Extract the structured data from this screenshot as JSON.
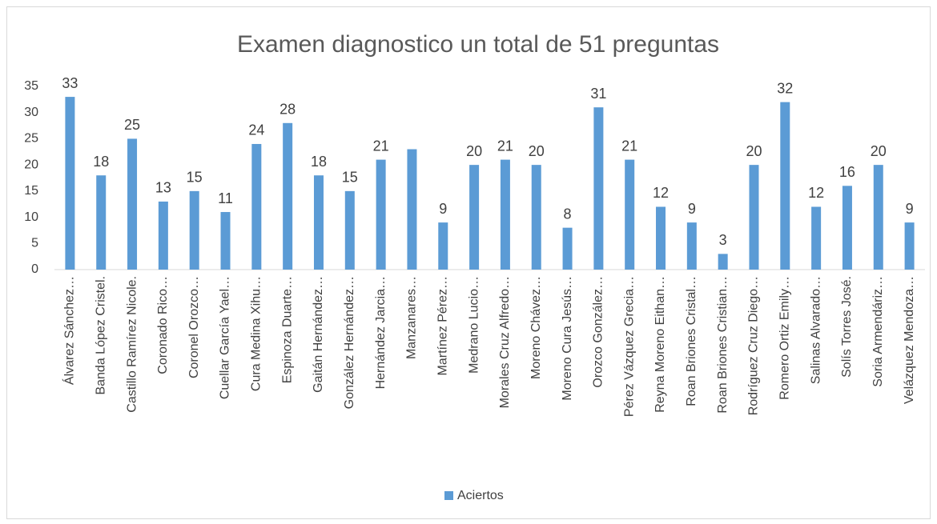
{
  "chart_data": {
    "type": "bar",
    "title": "Examen diagnostico un total de 51 preguntas",
    "categories": [
      "Álvarez Sánchez…",
      "Banda López Cristel.",
      "Castillo Ramírez Nicole.",
      "Coronado Rico…",
      "Coronel Orozco…",
      "Cuellar García Yael…",
      "Cura Medina Xihu…",
      "Espinoza Duarte…",
      "Gaitán Hernández…",
      "González Hernández…",
      "Hernández Jarcia…",
      "Manzanares…",
      "Martínez Pérez…",
      "Medrano Lucio…",
      "Morales Cruz Alfredo…",
      "Moreno Chávez…",
      "Moreno Cura Jesús…",
      "Orozco González…",
      "Pérez Vázquez Grecia…",
      "Reyna Moreno Eithan…",
      "Roan Briones Cristal…",
      "Roan Briones Cristian…",
      "Rodríguez Cruz Diego…",
      "Romero Ortiz Emily…",
      "Salinas Alvarado…",
      "Solís Torres José.",
      "Soria Armendáriz…",
      "Velázquez Mendoza…"
    ],
    "series": [
      {
        "name": "Aciertos",
        "color": "#5b9bd5",
        "values": [
          33,
          18,
          25,
          13,
          15,
          11,
          24,
          28,
          18,
          15,
          21,
          23,
          9,
          20,
          21,
          20,
          8,
          31,
          21,
          12,
          9,
          3,
          20,
          32,
          12,
          16,
          20,
          9
        ],
        "value_labels": [
          "33",
          "18",
          "25",
          "13",
          "15",
          "11",
          "24",
          "28",
          "18",
          "15",
          "21",
          null,
          "9",
          "20",
          "21",
          "20",
          "8",
          "31",
          "21",
          "12",
          "9",
          "3",
          "20",
          "32",
          "12",
          "16",
          "20",
          "9"
        ]
      }
    ],
    "ylim": [
      0,
      35
    ],
    "yticks": [
      0,
      5,
      10,
      15,
      20,
      25,
      30,
      35
    ],
    "grid": false,
    "legend": "bottom"
  }
}
